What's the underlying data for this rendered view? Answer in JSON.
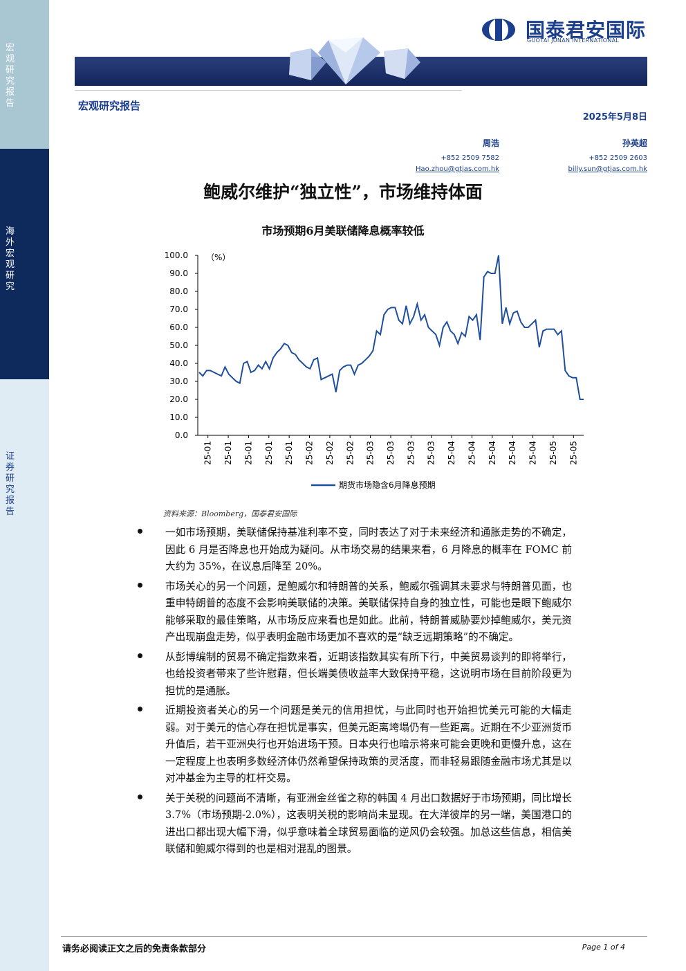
{
  "sidebar": {
    "section1": "宏观研究报告",
    "section2": "海外宏观研究",
    "section3": "证券研究报告"
  },
  "brand": {
    "name_cn": "国泰君安国际",
    "name_en": "GUOTAI JUNAN INTERNATIONAL",
    "color": "#1b3f8c"
  },
  "header": {
    "section_title": "宏观研究报告",
    "date": "2025年5月8日"
  },
  "authors": [
    {
      "name": "周浩",
      "phone": "+852 2509 7582",
      "email": "Hao.zhou@gtjas.com.hk"
    },
    {
      "name": "孙英超",
      "phone": "+852 2509 2603",
      "email": "billy.sun@gtjas.com.hk"
    }
  ],
  "title": "鲍威尔维护“独立性”，市场维持体面",
  "chart_title": "市场预期6月美联储降息概率较低",
  "chart_data": {
    "type": "line",
    "title": "市场预期6月美联储降息概率较低",
    "ylabel": "（%）",
    "ylim": [
      0,
      100
    ],
    "yticks": [
      "100.0",
      "90.0",
      "80.0",
      "70.0",
      "60.0",
      "50.0",
      "40.0",
      "30.0",
      "20.0",
      "10.0",
      "0.0"
    ],
    "xticks": [
      "25-01",
      "25-01",
      "25-01",
      "25-01",
      "25-01",
      "25-02",
      "25-02",
      "25-02",
      "25-03",
      "25-03",
      "25-03",
      "25-03",
      "25-04",
      "25-04",
      "25-04",
      "25-04",
      "25-04",
      "25-05",
      "25-05"
    ],
    "series": [
      {
        "name": "期货市场隐含6月降息预期",
        "color": "#1f4e9c",
        "values": [
          35,
          33,
          36,
          36,
          35,
          34,
          33,
          38,
          34,
          32,
          30,
          29,
          40,
          41,
          35,
          36,
          39,
          37,
          41,
          37,
          43,
          46,
          48,
          51,
          50,
          46,
          45,
          42,
          40,
          38,
          37,
          42,
          43,
          31,
          32,
          33,
          34,
          24,
          36,
          38,
          39,
          39,
          34,
          39,
          40,
          42,
          44,
          47,
          58,
          56,
          67,
          70,
          71,
          71,
          64,
          62,
          72,
          62,
          66,
          73,
          64,
          67,
          60,
          58,
          56,
          50,
          60,
          63,
          58,
          56,
          51,
          57,
          55,
          66,
          64,
          67,
          53,
          88,
          91,
          90,
          90,
          100,
          62,
          71,
          62,
          68,
          69,
          63,
          60,
          60,
          62,
          64,
          49,
          58,
          59,
          59,
          59,
          56,
          58,
          36,
          33,
          32,
          32,
          20,
          20
        ]
      }
    ]
  },
  "source": "资料来源：Bloomberg，国泰君安国际",
  "bullets": [
    "一如市场预期，美联储保持基准利率不变，同时表达了对于未来经济和通胀走势的不确定，因此 6 月是否降息也开始成为疑问。从市场交易的结果来看，6 月降息的概率在 FOMC 前大约为 35%，在议息后降至 20%。",
    "市场关心的另一个问题，是鲍威尔和特朗普的关系，鲍威尔强调其未要求与特朗普见面，也重申特朗普的态度不会影响美联储的决策。美联储保持自身的独立性，可能也是眼下鲍威尔能够采取的最佳策略，从市场反应来看也是如此。此前，特朗普威胁要炒掉鲍威尔，美元资产出现崩盘走势，似乎表明金融市场更加不喜欢的是“缺乏远期策略”的不确定。",
    "从彭博编制的贸易不确定指数来看，近期该指数其实有所下行，中美贸易谈判的即将举行，也给投资者带来了些许慰藉，但长端美债收益率大致保持平稳，这说明市场在目前阶段更为担忧的是通胀。",
    "近期投资者关心的另一个问题是美元的信用担忧，与此同时也开始担忧美元可能的大幅走弱。对于美元的信心存在担忧是事实，但美元距离垮塌仍有一些距离。近期在不少亚洲货币升值后，若干亚洲央行也开始进场干预。日本央行也暗示将来可能会更晚和更慢升息，这在一定程度上也表明多数经济体仍然希望保持政策的灵活度，而非轻易跟随金融市场尤其是以对冲基金为主导的杠杆交易。",
    "关于关税的问题尚不清晰，有亚洲金丝雀之称的韩国 4 月出口数据好于市场预期，同比增长 3.7%（市场预期-2.0%），这表明关税的影响尚未显现。在大洋彼岸的另一端，美国港口的进出口都出现大幅下滑，似乎意味着全球贸易面临的逆风仍会较强。加总这些信息，相信美联储和鲍威尔得到的也是相对混乱的图景。"
  ],
  "footer": {
    "disclaimer": "请务必阅读正文之后的免责条款部分",
    "page": "Page 1 of 4"
  }
}
